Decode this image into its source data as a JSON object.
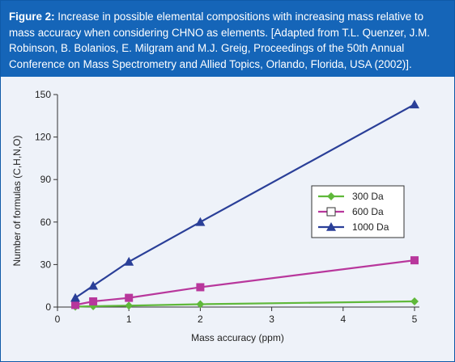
{
  "caption": {
    "label": "Figure 2:",
    "text": " Increase in possible elemental compositions with increasing mass relative to mass accuracy when considering CHNO as elements. [Adapted from T.L. Quenzer, J.M. Robinson, B. Bolanios, E. Milgram and M.J. Greig, Proceedings of the 50th Annual Conference on Mass Spectrometry and Allied Topics, Orlando, Florida, USA (2002)]."
  },
  "chart_data": {
    "type": "line",
    "xlabel": "Mass accuracy (ppm)",
    "ylabel": "Number of formulas (C,H,N,O)",
    "xlim": [
      0,
      5
    ],
    "ylim": [
      0,
      150
    ],
    "xticks": [
      0,
      1,
      2,
      3,
      4,
      5
    ],
    "yticks": [
      0,
      30,
      60,
      90,
      120,
      150
    ],
    "grid": false,
    "legend_position": "right-middle",
    "series": [
      {
        "name": "300 Da",
        "color": "#5fb83a",
        "marker": "diamond",
        "x": [
          0.25,
          0.5,
          1,
          2,
          5
        ],
        "y": [
          0.3,
          0.6,
          1,
          2,
          4
        ]
      },
      {
        "name": "600 Da",
        "color": "#b8379c",
        "marker": "square",
        "x": [
          0.25,
          0.5,
          1,
          2,
          5
        ],
        "y": [
          1.5,
          4,
          6.5,
          14,
          33
        ]
      },
      {
        "name": "1000 Da",
        "color": "#2a3f98",
        "marker": "triangle",
        "x": [
          0.25,
          0.5,
          1,
          2,
          5
        ],
        "y": [
          6.5,
          15,
          32,
          60,
          143
        ]
      }
    ]
  }
}
